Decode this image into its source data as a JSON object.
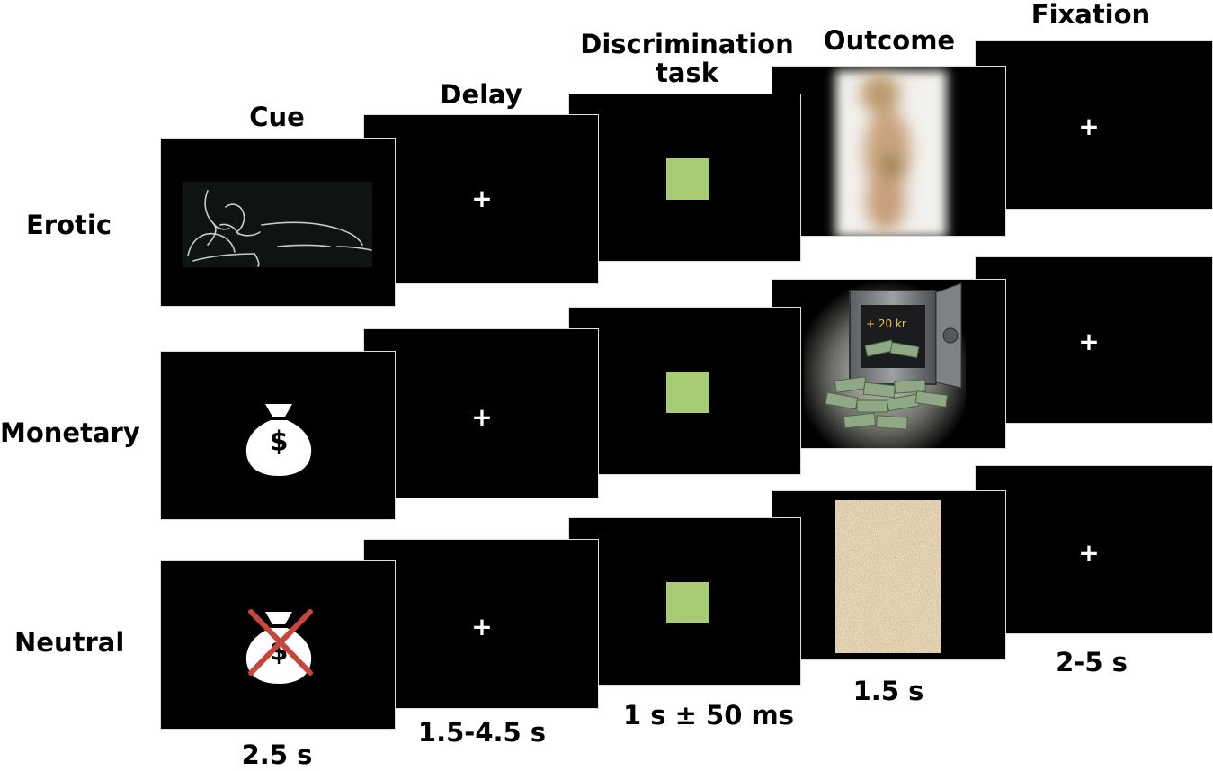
{
  "columns": {
    "cue": "Cue",
    "delay": "Delay",
    "discrimination_line1": "Discrimination",
    "discrimination_line2": "task",
    "outcome": "Outcome",
    "fixation": "Fixation"
  },
  "rows": {
    "erotic": "Erotic",
    "monetary": "Monetary",
    "neutral": "Neutral"
  },
  "durations": {
    "cue": "2.5 s",
    "delay": "1.5-4.5 s",
    "discrimination": "1 s ± 50 ms",
    "outcome": "1.5 s",
    "fixation": "2-5 s"
  },
  "symbols": {
    "fixation_cross": "+",
    "dollar": "$",
    "reward_text": "+ 20 kr"
  },
  "colors": {
    "screen": "#000000",
    "target": "#a8cb73",
    "cross_out": "#c8453c"
  },
  "icons": {
    "erotic_cue": "line-drawing-reclining-figure",
    "monetary_cue": "money-bag-icon",
    "neutral_cue": "crossed-out-money-bag-icon",
    "erotic_outcome": "blurred-photo",
    "monetary_outcome": "vault-with-cash-photo",
    "neutral_outcome": "scrambled-noise-image"
  }
}
